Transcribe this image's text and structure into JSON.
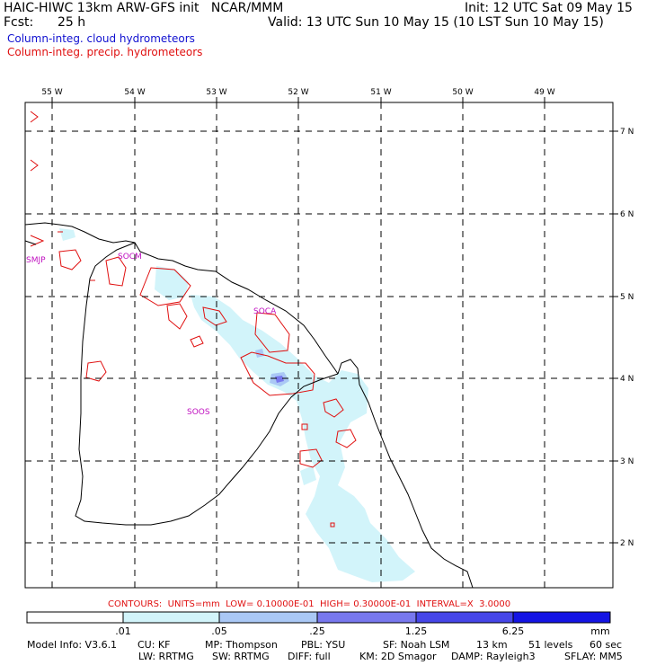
{
  "header": {
    "title": "HAIC-HIWC 13km ARW-GFS init   NCAR/MMM",
    "init": "Init: 12 UTC Sat 09 May 15",
    "fcst_label": "Fcst:",
    "fcst_value": "25 h",
    "valid": "Valid: 13 UTC Sun 10 May 15 (10 LST Sun 10 May 15)",
    "field_cloud": "Column-integ. cloud hydrometeors",
    "field_precip": "Column-integ. precip. hydrometeors"
  },
  "map": {
    "lon_labels": [
      "55 W",
      "54 W",
      "53 W",
      "52 W",
      "51 W",
      "50 W",
      "49 W"
    ],
    "lat_labels": [
      "7 N",
      "6 N",
      "5 N",
      "4 N",
      "3 N",
      "2 N"
    ],
    "stations": [
      "SMJP",
      "SOCM",
      "SOCA",
      "SOOS"
    ]
  },
  "contour_info": "CONTOURS:  UNITS=mm  LOW= 0.10000E-01  HIGH= 0.30000E-01  INTERVAL=X  3.0000",
  "colorbar": {
    "ticks": [
      ".01",
      ".05",
      ".25",
      "1.25",
      "6.25"
    ],
    "unit": "mm",
    "colors": [
      "#ffffff",
      "#d2f4fa",
      "#aac8f5",
      "#7878ee",
      "#4646e8",
      "#1414e4"
    ]
  },
  "model_info": {
    "line1": [
      "Model Info: V3.6.1",
      "CU: KF",
      "MP: Thompson",
      "PBL: YSU",
      "SF: Noah LSM",
      "13 km",
      "51 levels",
      "60 sec"
    ],
    "line2": [
      "LW: RRTMG",
      "SW: RRTMG",
      "DIFF: full",
      "KM: 2D Smagor",
      "DAMP: Rayleigh3",
      "SFLAY: MM5"
    ]
  }
}
